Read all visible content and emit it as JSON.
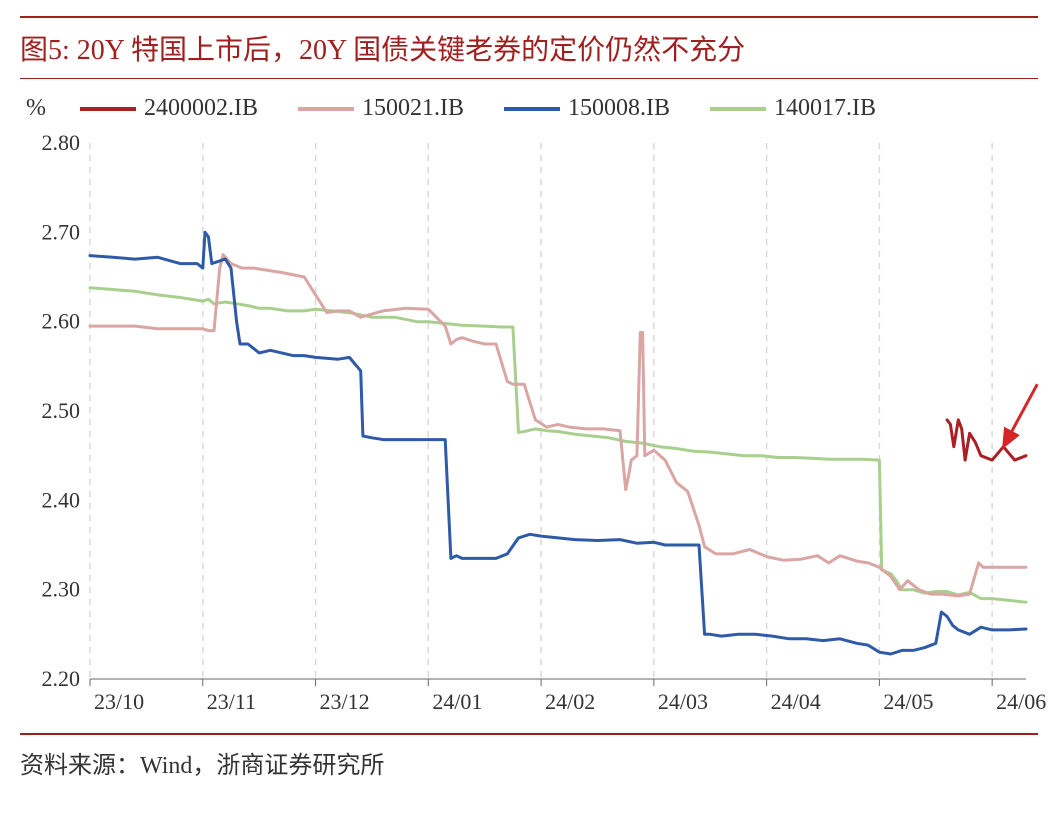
{
  "title": "图5:    20Y 特国上市后，20Y 国债关键老券的定价仍然不充分",
  "footer": "资料来源：Wind，浙商证券研究所",
  "chart": {
    "type": "line",
    "y_unit": "%",
    "background_color": "#ffffff",
    "grid_color": "#d9d9d9",
    "grid_dash": "6 6",
    "axis_color": "#666666",
    "legend_fontsize": 24,
    "axis_fontsize": 22,
    "ylim": [
      2.2,
      2.8
    ],
    "ytick_step": 0.1,
    "yticks": [
      "2.20",
      "2.30",
      "2.40",
      "2.50",
      "2.60",
      "2.70",
      "2.80"
    ],
    "xticks": [
      "23/10",
      "23/11",
      "23/12",
      "24/01",
      "24/02",
      "24/03",
      "24/04",
      "24/05",
      "24/06"
    ],
    "line_width": 3,
    "series": [
      {
        "name": "2400002.IB",
        "color": "#a91f24",
        "data": [
          [
            7.6,
            2.49
          ],
          [
            7.63,
            2.485
          ],
          [
            7.66,
            2.46
          ],
          [
            7.7,
            2.49
          ],
          [
            7.73,
            2.48
          ],
          [
            7.76,
            2.445
          ],
          [
            7.8,
            2.475
          ],
          [
            7.85,
            2.465
          ],
          [
            7.9,
            2.45
          ],
          [
            8.0,
            2.445
          ],
          [
            8.1,
            2.46
          ],
          [
            8.2,
            2.445
          ],
          [
            8.3,
            2.45
          ]
        ]
      },
      {
        "name": "150021.IB",
        "color": "#d9a6a3",
        "data": [
          [
            0.0,
            2.595
          ],
          [
            0.2,
            2.595
          ],
          [
            0.4,
            2.595
          ],
          [
            0.6,
            2.592
          ],
          [
            0.8,
            2.592
          ],
          [
            1.0,
            2.592
          ],
          [
            1.05,
            2.59
          ],
          [
            1.1,
            2.59
          ],
          [
            1.15,
            2.66
          ],
          [
            1.18,
            2.675
          ],
          [
            1.25,
            2.665
          ],
          [
            1.35,
            2.66
          ],
          [
            1.45,
            2.66
          ],
          [
            1.55,
            2.658
          ],
          [
            1.7,
            2.655
          ],
          [
            1.9,
            2.65
          ],
          [
            2.1,
            2.61
          ],
          [
            2.2,
            2.612
          ],
          [
            2.3,
            2.612
          ],
          [
            2.4,
            2.605
          ],
          [
            2.6,
            2.612
          ],
          [
            2.8,
            2.615
          ],
          [
            3.0,
            2.614
          ],
          [
            3.15,
            2.595
          ],
          [
            3.2,
            2.575
          ],
          [
            3.25,
            2.58
          ],
          [
            3.3,
            2.582
          ],
          [
            3.4,
            2.578
          ],
          [
            3.5,
            2.575
          ],
          [
            3.6,
            2.575
          ],
          [
            3.7,
            2.533
          ],
          [
            3.75,
            2.53
          ],
          [
            3.85,
            2.53
          ],
          [
            3.95,
            2.49
          ],
          [
            4.05,
            2.482
          ],
          [
            4.15,
            2.485
          ],
          [
            4.25,
            2.482
          ],
          [
            4.4,
            2.48
          ],
          [
            4.55,
            2.48
          ],
          [
            4.7,
            2.478
          ],
          [
            4.75,
            2.412
          ],
          [
            4.78,
            2.43
          ],
          [
            4.8,
            2.445
          ],
          [
            4.85,
            2.45
          ],
          [
            4.88,
            2.588
          ],
          [
            4.9,
            2.588
          ],
          [
            4.92,
            2.45
          ],
          [
            5.0,
            2.456
          ],
          [
            5.1,
            2.445
          ],
          [
            5.2,
            2.42
          ],
          [
            5.3,
            2.41
          ],
          [
            5.4,
            2.372
          ],
          [
            5.45,
            2.348
          ],
          [
            5.55,
            2.34
          ],
          [
            5.7,
            2.34
          ],
          [
            5.85,
            2.345
          ],
          [
            6.0,
            2.337
          ],
          [
            6.15,
            2.333
          ],
          [
            6.3,
            2.334
          ],
          [
            6.45,
            2.338
          ],
          [
            6.55,
            2.33
          ],
          [
            6.65,
            2.338
          ],
          [
            6.8,
            2.332
          ],
          [
            6.9,
            2.33
          ],
          [
            7.0,
            2.325
          ],
          [
            7.1,
            2.315
          ],
          [
            7.18,
            2.3
          ],
          [
            7.25,
            2.31
          ],
          [
            7.35,
            2.3
          ],
          [
            7.45,
            2.295
          ],
          [
            7.55,
            2.295
          ],
          [
            7.7,
            2.293
          ],
          [
            7.8,
            2.295
          ],
          [
            7.88,
            2.33
          ],
          [
            7.92,
            2.325
          ],
          [
            8.0,
            2.325
          ],
          [
            8.15,
            2.325
          ],
          [
            8.3,
            2.325
          ]
        ]
      },
      {
        "name": "150008.IB",
        "color": "#2e5aa8",
        "data": [
          [
            0.0,
            2.674
          ],
          [
            0.2,
            2.672
          ],
          [
            0.4,
            2.67
          ],
          [
            0.6,
            2.672
          ],
          [
            0.8,
            2.665
          ],
          [
            0.95,
            2.665
          ],
          [
            1.0,
            2.66
          ],
          [
            1.02,
            2.7
          ],
          [
            1.05,
            2.695
          ],
          [
            1.08,
            2.665
          ],
          [
            1.15,
            2.668
          ],
          [
            1.2,
            2.67
          ],
          [
            1.25,
            2.66
          ],
          [
            1.3,
            2.6
          ],
          [
            1.33,
            2.575
          ],
          [
            1.4,
            2.575
          ],
          [
            1.5,
            2.565
          ],
          [
            1.6,
            2.568
          ],
          [
            1.7,
            2.565
          ],
          [
            1.8,
            2.562
          ],
          [
            1.9,
            2.562
          ],
          [
            2.0,
            2.56
          ],
          [
            2.2,
            2.558
          ],
          [
            2.3,
            2.56
          ],
          [
            2.4,
            2.545
          ],
          [
            2.42,
            2.472
          ],
          [
            2.5,
            2.47
          ],
          [
            2.6,
            2.468
          ],
          [
            2.8,
            2.468
          ],
          [
            3.0,
            2.468
          ],
          [
            3.1,
            2.468
          ],
          [
            3.15,
            2.468
          ],
          [
            3.2,
            2.335
          ],
          [
            3.25,
            2.338
          ],
          [
            3.3,
            2.335
          ],
          [
            3.4,
            2.335
          ],
          [
            3.5,
            2.335
          ],
          [
            3.6,
            2.335
          ],
          [
            3.7,
            2.34
          ],
          [
            3.8,
            2.358
          ],
          [
            3.9,
            2.362
          ],
          [
            4.0,
            2.36
          ],
          [
            4.15,
            2.358
          ],
          [
            4.3,
            2.356
          ],
          [
            4.5,
            2.355
          ],
          [
            4.7,
            2.356
          ],
          [
            4.85,
            2.352
          ],
          [
            5.0,
            2.353
          ],
          [
            5.1,
            2.35
          ],
          [
            5.2,
            2.35
          ],
          [
            5.3,
            2.35
          ],
          [
            5.4,
            2.35
          ],
          [
            5.45,
            2.25
          ],
          [
            5.5,
            2.25
          ],
          [
            5.6,
            2.248
          ],
          [
            5.75,
            2.25
          ],
          [
            5.9,
            2.25
          ],
          [
            6.05,
            2.248
          ],
          [
            6.2,
            2.245
          ],
          [
            6.35,
            2.245
          ],
          [
            6.5,
            2.243
          ],
          [
            6.65,
            2.245
          ],
          [
            6.8,
            2.24
          ],
          [
            6.9,
            2.238
          ],
          [
            7.0,
            2.23
          ],
          [
            7.1,
            2.228
          ],
          [
            7.2,
            2.232
          ],
          [
            7.3,
            2.232
          ],
          [
            7.4,
            2.235
          ],
          [
            7.5,
            2.24
          ],
          [
            7.55,
            2.275
          ],
          [
            7.6,
            2.27
          ],
          [
            7.65,
            2.26
          ],
          [
            7.7,
            2.255
          ],
          [
            7.8,
            2.25
          ],
          [
            7.9,
            2.258
          ],
          [
            8.0,
            2.255
          ],
          [
            8.15,
            2.255
          ],
          [
            8.3,
            2.256
          ]
        ]
      },
      {
        "name": "140017.IB",
        "color": "#a9cf8e",
        "data": [
          [
            0.0,
            2.638
          ],
          [
            0.2,
            2.636
          ],
          [
            0.4,
            2.634
          ],
          [
            0.6,
            2.63
          ],
          [
            0.8,
            2.627
          ],
          [
            1.0,
            2.623
          ],
          [
            1.05,
            2.625
          ],
          [
            1.1,
            2.62
          ],
          [
            1.2,
            2.622
          ],
          [
            1.3,
            2.62
          ],
          [
            1.4,
            2.618
          ],
          [
            1.5,
            2.615
          ],
          [
            1.6,
            2.615
          ],
          [
            1.75,
            2.612
          ],
          [
            1.9,
            2.612
          ],
          [
            2.0,
            2.614
          ],
          [
            2.15,
            2.612
          ],
          [
            2.3,
            2.61
          ],
          [
            2.5,
            2.605
          ],
          [
            2.7,
            2.605
          ],
          [
            2.9,
            2.6
          ],
          [
            3.0,
            2.6
          ],
          [
            3.15,
            2.598
          ],
          [
            3.3,
            2.596
          ],
          [
            3.5,
            2.595
          ],
          [
            3.65,
            2.594
          ],
          [
            3.75,
            2.594
          ],
          [
            3.8,
            2.476
          ],
          [
            3.85,
            2.477
          ],
          [
            3.95,
            2.48
          ],
          [
            4.05,
            2.478
          ],
          [
            4.15,
            2.477
          ],
          [
            4.3,
            2.474
          ],
          [
            4.45,
            2.472
          ],
          [
            4.6,
            2.47
          ],
          [
            4.75,
            2.466
          ],
          [
            4.9,
            2.464
          ],
          [
            5.05,
            2.46
          ],
          [
            5.2,
            2.458
          ],
          [
            5.35,
            2.455
          ],
          [
            5.5,
            2.454
          ],
          [
            5.65,
            2.452
          ],
          [
            5.8,
            2.45
          ],
          [
            5.95,
            2.45
          ],
          [
            6.1,
            2.448
          ],
          [
            6.25,
            2.448
          ],
          [
            6.4,
            2.447
          ],
          [
            6.55,
            2.446
          ],
          [
            6.7,
            2.446
          ],
          [
            6.85,
            2.446
          ],
          [
            7.0,
            2.445
          ],
          [
            7.02,
            2.322
          ],
          [
            7.1,
            2.318
          ],
          [
            7.15,
            2.31
          ],
          [
            7.2,
            2.3
          ],
          [
            7.3,
            2.3
          ],
          [
            7.4,
            2.296
          ],
          [
            7.5,
            2.298
          ],
          [
            7.6,
            2.298
          ],
          [
            7.7,
            2.294
          ],
          [
            7.8,
            2.297
          ],
          [
            7.9,
            2.29
          ],
          [
            8.0,
            2.29
          ],
          [
            8.15,
            2.288
          ],
          [
            8.3,
            2.286
          ]
        ]
      }
    ],
    "arrow": {
      "color": "#d62728",
      "from": [
        8.4,
        2.53
      ],
      "to": [
        8.1,
        2.46
      ]
    }
  }
}
